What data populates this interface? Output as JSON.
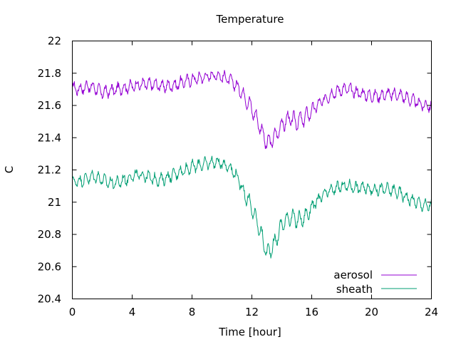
{
  "chart_data": {
    "type": "line",
    "title": "Temperature",
    "xlabel": "Time [hour]",
    "ylabel": "C",
    "xlim": [
      0,
      24
    ],
    "ylim": [
      20.4,
      22
    ],
    "xticks": [
      0,
      4,
      8,
      12,
      16,
      20,
      24
    ],
    "yticks": [
      20.4,
      20.6,
      20.8,
      21,
      21.2,
      21.4,
      21.6,
      21.8,
      22
    ],
    "xtick_labels": [
      "0",
      "4",
      "8",
      "12",
      "16",
      "20",
      "24"
    ],
    "ytick_labels": [
      "20.4",
      "20.6",
      "20.8",
      "21",
      "21.2",
      "21.4",
      "21.6",
      "21.8",
      "22"
    ],
    "grid": false,
    "legend_position": "bottom-right",
    "x": [
      0,
      0.5,
      1,
      1.5,
      2,
      2.5,
      3,
      3.5,
      4,
      4.5,
      5,
      5.5,
      6,
      6.5,
      7,
      7.5,
      8,
      8.5,
      9,
      9.5,
      10,
      10.5,
      11,
      11.5,
      12,
      12.5,
      13,
      13.5,
      14,
      14.5,
      15,
      15.5,
      16,
      16.5,
      17,
      17.5,
      18,
      18.5,
      19,
      19.5,
      20,
      20.5,
      21,
      21.5,
      22,
      22.5,
      23,
      23.5,
      24
    ],
    "series": [
      {
        "name": "aerosol",
        "color": "#9400d3",
        "values": [
          21.71,
          21.7,
          21.72,
          21.71,
          21.68,
          21.69,
          21.7,
          21.71,
          21.72,
          21.73,
          21.73,
          21.73,
          21.72,
          21.72,
          21.73,
          21.75,
          21.76,
          21.77,
          21.78,
          21.79,
          21.78,
          21.76,
          21.72,
          21.66,
          21.58,
          21.48,
          21.36,
          21.4,
          21.48,
          21.52,
          21.5,
          21.52,
          21.57,
          21.61,
          21.65,
          21.68,
          21.7,
          21.7,
          21.68,
          21.67,
          21.66,
          21.66,
          21.67,
          21.67,
          21.66,
          21.64,
          21.62,
          21.6,
          21.6
        ]
      },
      {
        "name": "sheath",
        "color": "#009e73",
        "values": [
          21.13,
          21.13,
          21.15,
          21.16,
          21.14,
          21.12,
          21.12,
          21.14,
          21.16,
          21.17,
          21.16,
          21.14,
          21.14,
          21.16,
          21.18,
          21.2,
          21.22,
          21.23,
          21.24,
          21.25,
          21.24,
          21.22,
          21.16,
          21.06,
          20.96,
          20.84,
          20.68,
          20.74,
          20.86,
          20.91,
          20.89,
          20.9,
          20.97,
          21.02,
          21.06,
          21.08,
          21.1,
          21.1,
          21.09,
          21.09,
          21.08,
          21.08,
          21.08,
          21.07,
          21.05,
          21.02,
          21.0,
          20.98,
          20.98
        ]
      }
    ]
  }
}
